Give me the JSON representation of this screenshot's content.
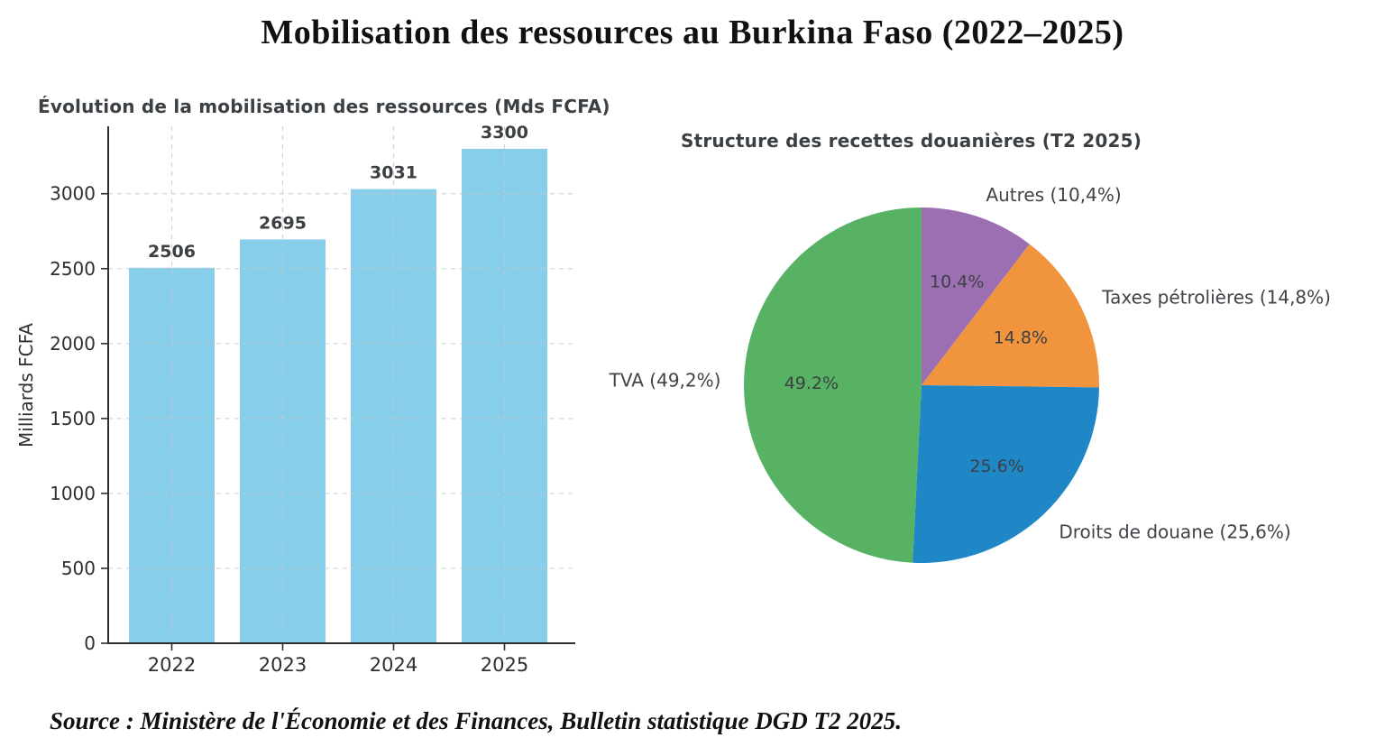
{
  "main_title": "Mobilisation des ressources au Burkina Faso (2022–2025)",
  "source_note": "Source : Ministère de l'Économie et des Finances, Bulletin statistique DGD T2 2025.",
  "chart_data": [
    {
      "type": "bar",
      "title": "Évolution de la mobilisation des ressources (Mds FCFA)",
      "ylabel": "Milliards FCFA",
      "xlabel": "",
      "categories": [
        "2022",
        "2023",
        "2024",
        "2025"
      ],
      "values": [
        2506,
        2695,
        3031,
        3300
      ],
      "bar_labels": [
        "2506",
        "2695",
        "3031",
        "3300"
      ],
      "bar_color": "#87CEEB",
      "yticks": [
        0,
        500,
        1000,
        1500,
        2000,
        2500,
        3000
      ],
      "ylim": [
        0,
        3450
      ],
      "grid": "dashed"
    },
    {
      "type": "pie",
      "title": "Structure des recettes douanières (T2 2025)",
      "start_angle_deg": 90,
      "direction": "clockwise",
      "slices": [
        {
          "label": "Autres (10,4%)",
          "pct_label": "10.4%",
          "value": 10.4,
          "color": "#9C6FB2"
        },
        {
          "label": "Taxes pétrolières (14,8%)",
          "pct_label": "14.8%",
          "value": 14.8,
          "color": "#F0943E"
        },
        {
          "label": "Droits de douane (25,6%)",
          "pct_label": "25.6%",
          "value": 25.6,
          "color": "#1F87C5"
        },
        {
          "label": "TVA (49,2%)",
          "pct_label": "49.2%",
          "value": 49.2,
          "color": "#57B263"
        }
      ]
    }
  ],
  "palette": {
    "title_text": "#111111",
    "chart_title_text": "#3b4045",
    "tick_text": "#2f2f2f",
    "value_label_text": "#3c4043",
    "pie_label_text": "#3f4347",
    "grid": "#c8c8c8",
    "axis": "#2f2f2f"
  }
}
